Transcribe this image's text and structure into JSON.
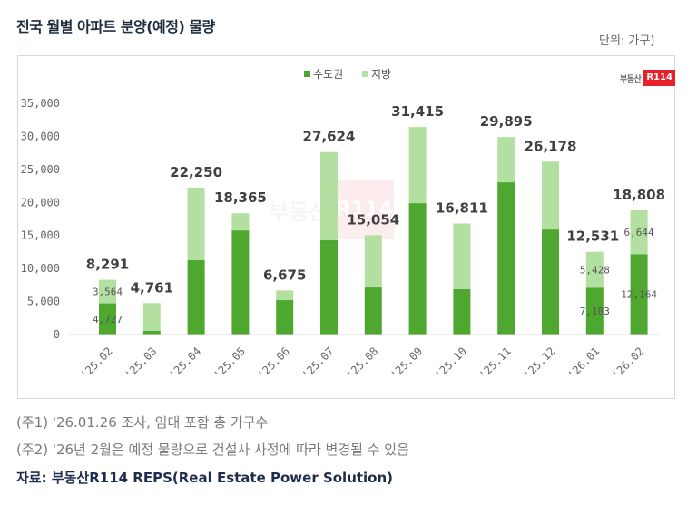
{
  "header": {
    "title": "전국 월별 아파트 분양(예정) 물량",
    "unit": "단위: 가구)"
  },
  "logo": {
    "text": "부동산",
    "badge": "R114"
  },
  "watermark": {
    "text": "부동산",
    "badge": "R114"
  },
  "colors": {
    "metro": "#4ea72e",
    "local": "#b3e0a1"
  },
  "chart_data": {
    "type": "bar",
    "stacked": true,
    "title": "전국 월별 아파트 분양(예정) 물량",
    "xlabel": "",
    "ylabel": "",
    "ylim": [
      0,
      35000
    ],
    "yticks": [
      0,
      5000,
      10000,
      15000,
      20000,
      25000,
      30000,
      35000
    ],
    "ytick_labels": [
      "0",
      "5,000",
      "10,000",
      "15,000",
      "20,000",
      "25,000",
      "30,000",
      "35,000"
    ],
    "legend_position": "top-center",
    "grid": false,
    "categories": [
      "'25.02",
      "'25.03",
      "'25.04",
      "'25.05",
      "'25.06",
      "'25.07",
      "'25.08",
      "'25.09",
      "'25.10",
      "'25.11",
      "'25.12",
      "'26.01",
      "'26.02"
    ],
    "series": [
      {
        "name": "수도권",
        "values": [
          4727,
          550,
          11250,
          15770,
          5210,
          14270,
          7130,
          19890,
          6860,
          23050,
          15910,
          7103,
          12164
        ]
      },
      {
        "name": "지방",
        "values": [
          3564,
          4211,
          11000,
          2595,
          1465,
          13354,
          7924,
          11525,
          9951,
          6845,
          10268,
          5428,
          6644
        ]
      }
    ],
    "totals": [
      8291,
      4761,
      22250,
      18365,
      6675,
      27624,
      15054,
      31415,
      16811,
      29895,
      26178,
      12531,
      18808
    ],
    "total_labels": [
      "8,291",
      "4,761",
      "22,250",
      "18,365",
      "6,675",
      "27,624",
      "15,054",
      "31,415",
      "16,811",
      "29,895",
      "26,178",
      "12,531",
      "18,808"
    ],
    "segment_labels": [
      {
        "category": "'25.02",
        "series": "수도권",
        "text": "4,727"
      },
      {
        "category": "'25.02",
        "series": "지방",
        "text": "3,564"
      },
      {
        "category": "'26.01",
        "series": "수도권",
        "text": "7,103"
      },
      {
        "category": "'26.01",
        "series": "지방",
        "text": "5,428"
      },
      {
        "category": "'26.02",
        "series": "수도권",
        "text": "12,164"
      },
      {
        "category": "'26.02",
        "series": "지방",
        "text": "6,644"
      }
    ]
  },
  "notes": [
    "(주1) '26.01.26 조사, 임대 포함 총 가구수",
    "(주2) '26년 2월은 예정 물량으로 건설사 사정에 따라 변경될 수 있음"
  ],
  "source": "자료: 부동산R114 REPS(Real Estate Power Solution)"
}
